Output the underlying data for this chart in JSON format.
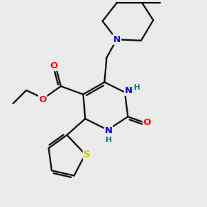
{
  "bg_color": "#ebebeb",
  "atom_colors": {
    "C": "#000000",
    "N": "#0000cc",
    "O": "#ff0000",
    "S": "#cccc00",
    "H": "#008080"
  },
  "bond_color": "#000000",
  "bond_width": 1.6,
  "figsize": [
    3.0,
    3.0
  ],
  "dpi": 100,
  "xlim": [
    0,
    10
  ],
  "ylim": [
    0,
    10
  ]
}
